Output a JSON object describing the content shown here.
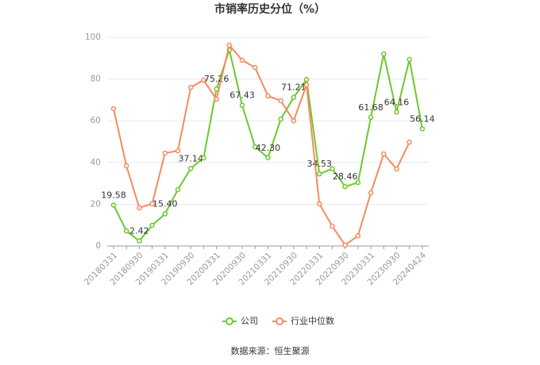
{
  "chart_data": {
    "type": "line",
    "title": "市销率历史分位（%）",
    "categories": [
      "20180331",
      null,
      "20180930",
      null,
      "20190331",
      null,
      "20190930",
      null,
      "20200331",
      null,
      "20200930",
      null,
      "20210331",
      null,
      "20210930",
      null,
      "20220331",
      null,
      "20220930",
      null,
      "20230331",
      null,
      "20230930",
      null,
      "20240424"
    ],
    "series": [
      {
        "name": "公司",
        "color": "#6cc92e",
        "values": [
          19.58,
          7.2,
          2.42,
          9.9,
          15.4,
          27,
          37.14,
          42.2,
          75.26,
          94,
          67.43,
          47.5,
          42.3,
          60.8,
          71.21,
          79.8,
          34.53,
          37,
          28.46,
          30.4,
          61.68,
          92,
          64.16,
          89.4,
          56.14
        ],
        "value_labels": [
          "19.58",
          null,
          "2.42",
          null,
          "15.40",
          null,
          "37.14",
          null,
          "75.26",
          null,
          "67.43",
          null,
          "42.30",
          null,
          "71.21",
          null,
          "34.53",
          null,
          "28.46",
          null,
          "61.68",
          null,
          "64.16",
          null,
          "56.14"
        ]
      },
      {
        "name": "行业中位数",
        "color": "#f58b5f",
        "values": [
          65.8,
          38.4,
          18.3,
          20.2,
          44.5,
          45.6,
          76,
          79.5,
          70.3,
          96.2,
          89,
          85.5,
          71.9,
          69.6,
          60,
          77.2,
          20.2,
          9.5,
          0.4,
          4.9,
          25.5,
          44.1,
          36.9,
          49.8,
          null
        ]
      }
    ],
    "ylim": [
      0,
      100
    ],
    "yticks": [
      0,
      20,
      40,
      60,
      80,
      100
    ],
    "grid": true,
    "source": "数据来源：恒生聚源"
  }
}
